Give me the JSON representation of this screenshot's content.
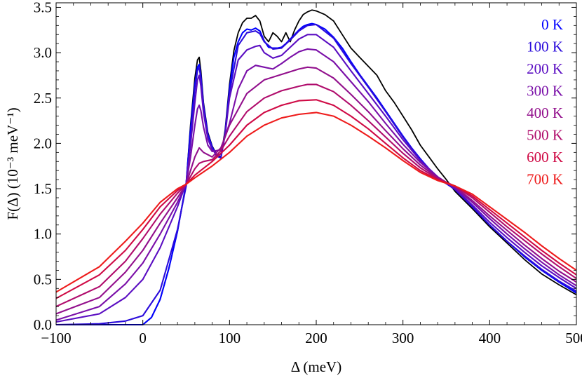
{
  "chart_data": {
    "type": "line",
    "title": "",
    "xlabel": "Δ (meV)",
    "ylabel": "F(Δ) (10⁻³ meV⁻¹)",
    "xlim": [
      -100,
      500
    ],
    "ylim": [
      0,
      3.55
    ],
    "x_ticks": [
      "−100",
      "0",
      "100",
      "200",
      "300",
      "400",
      "500"
    ],
    "x_tick_values": [
      -100,
      0,
      100,
      200,
      300,
      400,
      500
    ],
    "y_ticks": [
      "0.0",
      "0.5",
      "1.0",
      "1.5",
      "2.0",
      "2.5",
      "3.0",
      "3.5"
    ],
    "y_tick_values": [
      0,
      0.5,
      1.0,
      1.5,
      2.0,
      2.5,
      3.0,
      3.5
    ],
    "grid": false,
    "legend_position": "top-right",
    "series": [
      {
        "name": "",
        "color": "#000000",
        "x": [
          -100,
          0,
          10,
          20,
          30,
          40,
          50,
          55,
          60,
          63,
          65,
          67,
          70,
          75,
          80,
          85,
          90,
          95,
          100,
          105,
          110,
          115,
          120,
          125,
          130,
          135,
          140,
          145,
          150,
          155,
          160,
          165,
          170,
          175,
          180,
          185,
          190,
          195,
          200,
          210,
          220,
          230,
          240,
          250,
          260,
          270,
          280,
          290,
          300,
          310,
          320,
          330,
          340,
          350,
          360,
          380,
          400,
          420,
          440,
          460,
          480,
          500
        ],
        "y": [
          0.0,
          0.0,
          0.08,
          0.28,
          0.62,
          1.03,
          1.56,
          2.2,
          2.72,
          2.92,
          2.95,
          2.8,
          2.45,
          2.12,
          1.97,
          1.88,
          1.85,
          2.15,
          2.65,
          3.02,
          3.22,
          3.33,
          3.38,
          3.38,
          3.41,
          3.35,
          3.18,
          3.12,
          3.22,
          3.18,
          3.12,
          3.22,
          3.12,
          3.25,
          3.35,
          3.42,
          3.45,
          3.47,
          3.46,
          3.42,
          3.35,
          3.2,
          3.05,
          2.95,
          2.85,
          2.75,
          2.58,
          2.45,
          2.3,
          2.15,
          1.98,
          1.85,
          1.72,
          1.6,
          1.47,
          1.28,
          1.08,
          0.9,
          0.72,
          0.56,
          0.44,
          0.33
        ]
      },
      {
        "name": "0 K",
        "color": "#0000ff",
        "x": [
          -100,
          0,
          10,
          20,
          30,
          40,
          50,
          55,
          60,
          63,
          65,
          67,
          70,
          75,
          80,
          85,
          90,
          95,
          100,
          105,
          110,
          115,
          120,
          125,
          130,
          135,
          140,
          145,
          150,
          155,
          160,
          165,
          170,
          175,
          180,
          185,
          190,
          195,
          200,
          210,
          220,
          230,
          240,
          250,
          260,
          270,
          280,
          290,
          300,
          310,
          320,
          330,
          340,
          350,
          360,
          380,
          400,
          420,
          440,
          460,
          480,
          500
        ],
        "y": [
          0.0,
          0.0,
          0.08,
          0.28,
          0.62,
          1.03,
          1.56,
          2.15,
          2.65,
          2.84,
          2.87,
          2.74,
          2.42,
          2.1,
          1.96,
          1.87,
          1.84,
          2.12,
          2.6,
          2.95,
          3.12,
          3.22,
          3.26,
          3.25,
          3.27,
          3.24,
          3.13,
          3.06,
          3.05,
          3.05,
          3.06,
          3.1,
          3.15,
          3.2,
          3.25,
          3.29,
          3.31,
          3.32,
          3.31,
          3.26,
          3.17,
          3.05,
          2.9,
          2.76,
          2.63,
          2.5,
          2.36,
          2.22,
          2.08,
          1.95,
          1.83,
          1.72,
          1.63,
          1.56,
          1.5,
          1.3,
          1.1,
          0.92,
          0.75,
          0.6,
          0.47,
          0.35
        ]
      },
      {
        "name": "100 K",
        "color": "#2a0bdb",
        "x": [
          -100,
          -50,
          -20,
          0,
          20,
          40,
          50,
          55,
          60,
          63,
          65,
          67,
          70,
          75,
          80,
          85,
          90,
          95,
          100,
          110,
          120,
          130,
          135,
          140,
          150,
          160,
          170,
          180,
          190,
          200,
          220,
          240,
          260,
          280,
          300,
          320,
          340,
          360,
          380,
          400,
          420,
          440,
          460,
          480,
          500
        ],
        "y": [
          0.0,
          0.01,
          0.04,
          0.1,
          0.38,
          1.05,
          1.53,
          2.05,
          2.6,
          2.8,
          2.84,
          2.72,
          2.4,
          2.08,
          1.95,
          1.86,
          1.84,
          2.1,
          2.56,
          3.08,
          3.22,
          3.24,
          3.21,
          3.12,
          3.04,
          3.05,
          3.14,
          3.24,
          3.3,
          3.31,
          3.16,
          2.88,
          2.62,
          2.35,
          2.07,
          1.82,
          1.62,
          1.49,
          1.3,
          1.1,
          0.92,
          0.76,
          0.61,
          0.48,
          0.37
        ]
      },
      {
        "name": "200 K",
        "color": "#5a0dc2",
        "x": [
          -100,
          -50,
          -20,
          0,
          20,
          40,
          50,
          55,
          60,
          63,
          65,
          67,
          70,
          75,
          80,
          85,
          90,
          95,
          100,
          110,
          120,
          130,
          135,
          140,
          150,
          160,
          170,
          180,
          190,
          200,
          220,
          240,
          260,
          280,
          300,
          320,
          340,
          360,
          380,
          400,
          420,
          440,
          460,
          480,
          500
        ],
        "y": [
          0.03,
          0.12,
          0.3,
          0.5,
          0.85,
          1.3,
          1.56,
          1.98,
          2.45,
          2.7,
          2.75,
          2.63,
          2.34,
          2.05,
          1.93,
          1.88,
          1.88,
          2.1,
          2.5,
          2.92,
          3.03,
          3.07,
          3.08,
          3.0,
          2.94,
          2.97,
          3.06,
          3.15,
          3.2,
          3.2,
          3.06,
          2.8,
          2.55,
          2.3,
          2.04,
          1.81,
          1.63,
          1.5,
          1.32,
          1.13,
          0.96,
          0.8,
          0.65,
          0.52,
          0.4
        ]
      },
      {
        "name": "300 K",
        "color": "#7a0fa8",
        "x": [
          -100,
          -50,
          -20,
          0,
          20,
          40,
          50,
          55,
          60,
          63,
          65,
          67,
          70,
          75,
          80,
          90,
          100,
          110,
          120,
          130,
          140,
          150,
          160,
          170,
          180,
          190,
          200,
          220,
          240,
          260,
          280,
          300,
          320,
          340,
          360,
          380,
          400,
          420,
          440,
          460,
          480,
          500
        ],
        "y": [
          0.05,
          0.2,
          0.45,
          0.68,
          1.0,
          1.35,
          1.55,
          1.85,
          2.2,
          2.38,
          2.42,
          2.36,
          2.18,
          1.98,
          1.91,
          1.93,
          2.22,
          2.6,
          2.8,
          2.86,
          2.84,
          2.82,
          2.88,
          2.95,
          3.01,
          3.04,
          3.03,
          2.9,
          2.68,
          2.46,
          2.22,
          1.99,
          1.79,
          1.63,
          1.51,
          1.35,
          1.17,
          1.0,
          0.84,
          0.69,
          0.55,
          0.43
        ]
      },
      {
        "name": "400 K",
        "color": "#920f8c",
        "x": [
          -100,
          -50,
          -20,
          0,
          20,
          40,
          50,
          60,
          65,
          70,
          80,
          90,
          100,
          120,
          140,
          160,
          180,
          190,
          200,
          220,
          240,
          260,
          280,
          300,
          320,
          340,
          360,
          380,
          400,
          420,
          440,
          460,
          480,
          500
        ],
        "y": [
          0.12,
          0.3,
          0.58,
          0.82,
          1.12,
          1.4,
          1.55,
          1.85,
          1.95,
          1.9,
          1.85,
          1.95,
          2.2,
          2.55,
          2.7,
          2.76,
          2.82,
          2.84,
          2.83,
          2.72,
          2.54,
          2.35,
          2.14,
          1.94,
          1.76,
          1.62,
          1.52,
          1.37,
          1.2,
          1.04,
          0.88,
          0.73,
          0.59,
          0.47
        ]
      },
      {
        "name": "500 K",
        "color": "#b00c6c",
        "x": [
          -100,
          -50,
          -20,
          0,
          20,
          40,
          50,
          60,
          65,
          70,
          80,
          90,
          100,
          120,
          140,
          160,
          180,
          190,
          200,
          220,
          240,
          260,
          280,
          300,
          320,
          340,
          360,
          380,
          400,
          420,
          440,
          460,
          480,
          500
        ],
        "y": [
          0.2,
          0.42,
          0.7,
          0.95,
          1.22,
          1.45,
          1.55,
          1.72,
          1.78,
          1.8,
          1.82,
          1.92,
          2.08,
          2.35,
          2.5,
          2.58,
          2.63,
          2.65,
          2.65,
          2.57,
          2.42,
          2.25,
          2.07,
          1.89,
          1.73,
          1.61,
          1.53,
          1.4,
          1.24,
          1.08,
          0.93,
          0.78,
          0.64,
          0.51
        ]
      },
      {
        "name": "600 K",
        "color": "#cf0a45",
        "x": [
          -100,
          -50,
          -20,
          0,
          20,
          40,
          50,
          60,
          80,
          100,
          120,
          140,
          160,
          180,
          200,
          220,
          240,
          260,
          280,
          300,
          320,
          340,
          360,
          380,
          400,
          420,
          440,
          460,
          480,
          500
        ],
        "y": [
          0.29,
          0.55,
          0.82,
          1.05,
          1.3,
          1.48,
          1.55,
          1.65,
          1.8,
          1.98,
          2.2,
          2.34,
          2.42,
          2.47,
          2.48,
          2.42,
          2.3,
          2.16,
          2.0,
          1.84,
          1.7,
          1.6,
          1.53,
          1.42,
          1.27,
          1.12,
          0.97,
          0.82,
          0.68,
          0.55
        ]
      },
      {
        "name": "700 K",
        "color": "#ee1b1b",
        "x": [
          -100,
          -50,
          -20,
          0,
          20,
          40,
          50,
          60,
          80,
          100,
          120,
          140,
          160,
          180,
          200,
          220,
          240,
          260,
          280,
          300,
          320,
          340,
          360,
          380,
          400,
          420,
          440,
          460,
          480,
          500
        ],
        "y": [
          0.36,
          0.64,
          0.92,
          1.12,
          1.35,
          1.5,
          1.55,
          1.62,
          1.75,
          1.9,
          2.08,
          2.2,
          2.28,
          2.32,
          2.34,
          2.3,
          2.2,
          2.08,
          1.95,
          1.81,
          1.68,
          1.59,
          1.53,
          1.44,
          1.3,
          1.16,
          1.02,
          0.87,
          0.73,
          0.6
        ]
      }
    ]
  }
}
